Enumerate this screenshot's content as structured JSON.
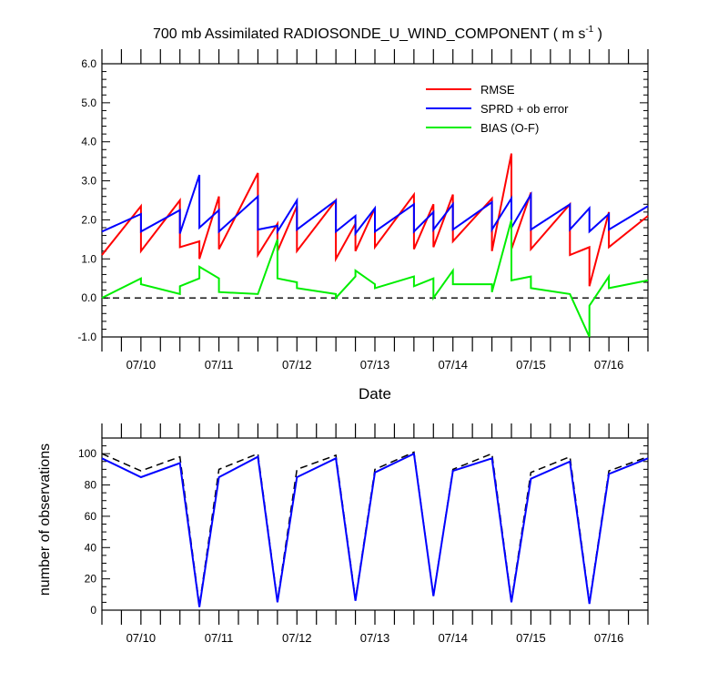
{
  "chart_data": [
    {
      "type": "line",
      "title": "700 mb Assimilated RADIOSONDE_U_WIND_COMPONENT ( m s",
      "title_unit_exponent": "-1",
      "title_suffix": " )",
      "xlabel": "Date",
      "ylabel": "",
      "x_ticks": [
        "07/10",
        "07/11",
        "07/12",
        "07/13",
        "07/14",
        "07/15",
        "07/16"
      ],
      "y_ticks": [
        "-1.0",
        "0.0",
        "1.0",
        "2.0",
        "3.0",
        "4.0",
        "5.0",
        "6.0"
      ],
      "xlim": [
        0,
        14
      ],
      "ylim": [
        -1.0,
        6.0
      ],
      "zero_line": "dashed",
      "legend_position": "top-right",
      "colors": {
        "RMSE": "#ff0000",
        "SPRD": "#0000ff",
        "BIAS": "#00ee00"
      },
      "series": [
        {
          "name": "RMSE",
          "color": "#ff0000",
          "x": [
            0,
            1,
            1,
            2,
            2,
            2.5,
            2.5,
            3,
            3,
            4,
            4,
            4.5,
            4.5,
            5,
            5,
            6,
            6,
            6.5,
            6.5,
            7,
            7,
            8,
            8,
            8.5,
            8.5,
            9,
            9,
            10,
            10,
            10.5,
            10.5,
            11,
            11,
            12,
            12,
            12.5,
            12.5,
            13,
            13,
            14
          ],
          "y": [
            1.1,
            2.35,
            1.2,
            2.5,
            1.3,
            1.45,
            1.0,
            2.6,
            1.25,
            3.2,
            1.1,
            1.9,
            1.2,
            2.35,
            1.2,
            2.5,
            1.0,
            1.9,
            1.2,
            2.3,
            1.3,
            2.65,
            1.25,
            2.4,
            1.3,
            2.65,
            1.45,
            2.55,
            1.2,
            3.7,
            1.25,
            2.7,
            1.25,
            2.4,
            1.1,
            1.3,
            0.3,
            2.2,
            1.3,
            2.1
          ]
        },
        {
          "name": "SPRD + ob error",
          "color": "#0000ff",
          "x": [
            0,
            1,
            1,
            2,
            2,
            2.5,
            2.5,
            3,
            3,
            4,
            4,
            4.5,
            4.5,
            5,
            5,
            6,
            6,
            6.5,
            6.5,
            7,
            7,
            8,
            8,
            8.5,
            8.5,
            9,
            9,
            10,
            10,
            10.5,
            10.5,
            11,
            11,
            12,
            12,
            12.5,
            12.5,
            13,
            13,
            14
          ],
          "y": [
            1.7,
            2.15,
            1.7,
            2.25,
            1.65,
            3.15,
            1.8,
            2.25,
            1.7,
            2.6,
            1.75,
            1.85,
            1.7,
            2.5,
            1.75,
            2.5,
            1.7,
            2.1,
            1.65,
            2.3,
            1.7,
            2.4,
            1.7,
            2.2,
            1.75,
            2.4,
            1.75,
            2.45,
            1.75,
            2.55,
            1.8,
            2.65,
            1.75,
            2.4,
            1.75,
            2.3,
            1.7,
            2.15,
            1.75,
            2.35
          ]
        },
        {
          "name": "BIAS (O-F)",
          "color": "#00ee00",
          "x": [
            0,
            1,
            1,
            2,
            2,
            2.5,
            2.5,
            3,
            3,
            4,
            4,
            4.5,
            4.5,
            5,
            5,
            6,
            6,
            6.5,
            6.5,
            7,
            7,
            8,
            8,
            8.5,
            8.5,
            9,
            9,
            10,
            10,
            10.5,
            10.5,
            11,
            11,
            12,
            12,
            12.5,
            12.5,
            13,
            13,
            14
          ],
          "y": [
            0.0,
            0.5,
            0.35,
            0.1,
            0.3,
            0.5,
            0.8,
            0.5,
            0.15,
            0.1,
            0.1,
            1.5,
            0.5,
            0.4,
            0.25,
            0.1,
            0.0,
            0.55,
            0.7,
            0.35,
            0.25,
            0.55,
            0.3,
            0.5,
            0.0,
            0.7,
            0.35,
            0.35,
            0.15,
            2.0,
            0.45,
            0.55,
            0.25,
            0.1,
            0.1,
            -1.0,
            -0.2,
            0.55,
            0.25,
            0.45
          ]
        }
      ]
    },
    {
      "type": "line",
      "title": "",
      "xlabel": "",
      "ylabel": "number of observations",
      "x_ticks": [
        "07/10",
        "07/11",
        "07/12",
        "07/13",
        "07/14",
        "07/15",
        "07/16"
      ],
      "y_ticks": [
        "0",
        "20",
        "40",
        "60",
        "80",
        "100"
      ],
      "xlim": [
        0,
        14
      ],
      "ylim": [
        0,
        110
      ],
      "series": [
        {
          "color": "#000000",
          "dash": "dashed",
          "x": [
            0,
            1,
            2,
            2.5,
            3,
            4,
            4.5,
            5,
            6,
            6.5,
            7,
            8,
            8.5,
            9,
            10,
            10.5,
            11,
            12,
            12.5,
            13,
            14
          ],
          "y": [
            100,
            89,
            98,
            3,
            90,
            100,
            6,
            90,
            99,
            7,
            90,
            101,
            9,
            90,
            100,
            6,
            88,
            98,
            5,
            89,
            98
          ]
        },
        {
          "color": "#0000ff",
          "x": [
            0,
            1,
            2,
            2.5,
            3,
            4,
            4.5,
            5,
            6,
            6.5,
            7,
            8,
            8.5,
            9,
            10,
            10.5,
            11,
            12,
            12.5,
            13,
            14
          ],
          "y": [
            97,
            85,
            94,
            2,
            85,
            98,
            5,
            85,
            97,
            6,
            88,
            100,
            9,
            89,
            97,
            5,
            84,
            95,
            4,
            87,
            97
          ]
        }
      ]
    }
  ]
}
